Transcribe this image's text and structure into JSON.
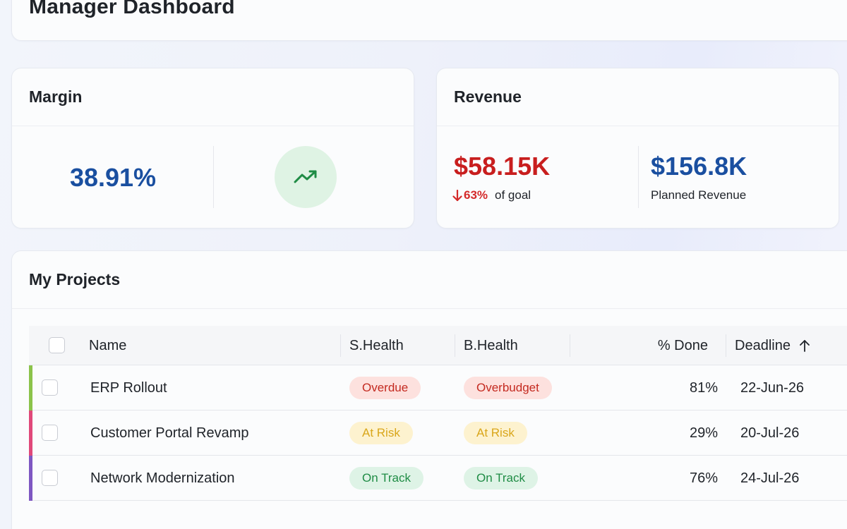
{
  "page": {
    "title": "Manager Dashboard"
  },
  "margin": {
    "title": "Margin",
    "value": "38.91%",
    "trend_icon": "trending-up-icon",
    "trend_color": "#1f8c45"
  },
  "revenue": {
    "title": "Revenue",
    "actual": "$58.15K",
    "change_arrow_icon": "arrow-down-icon",
    "change_pct": "63%",
    "change_label": "of goal",
    "planned": "$156.8K",
    "planned_label": "Planned Revenue"
  },
  "projects": {
    "title": "My Projects",
    "columns": {
      "name": "Name",
      "schedule_health": "S.Health",
      "budget_health": "B.Health",
      "done": "% Done",
      "deadline": "Deadline",
      "sort_icon": "arrow-up-icon"
    },
    "rows": [
      {
        "name": "ERP Rollout",
        "s_health": "Overdue",
        "b_health": "Overbudget",
        "done": "81%",
        "deadline": "22-Jun-26",
        "bar_color": "#8bc34a"
      },
      {
        "name": "Customer Portal Revamp",
        "s_health": "At Risk",
        "b_health": "At Risk",
        "done": "29%",
        "deadline": "20-Jul-26",
        "bar_color": "#e0487a"
      },
      {
        "name": "Network Modernization",
        "s_health": "On Track",
        "b_health": "On Track",
        "done": "76%",
        "deadline": "24-Jul-26",
        "bar_color": "#7e57c2"
      }
    ]
  },
  "colors": {
    "accent_blue": "#1a4fa0",
    "negative_red": "#c81e1e"
  }
}
